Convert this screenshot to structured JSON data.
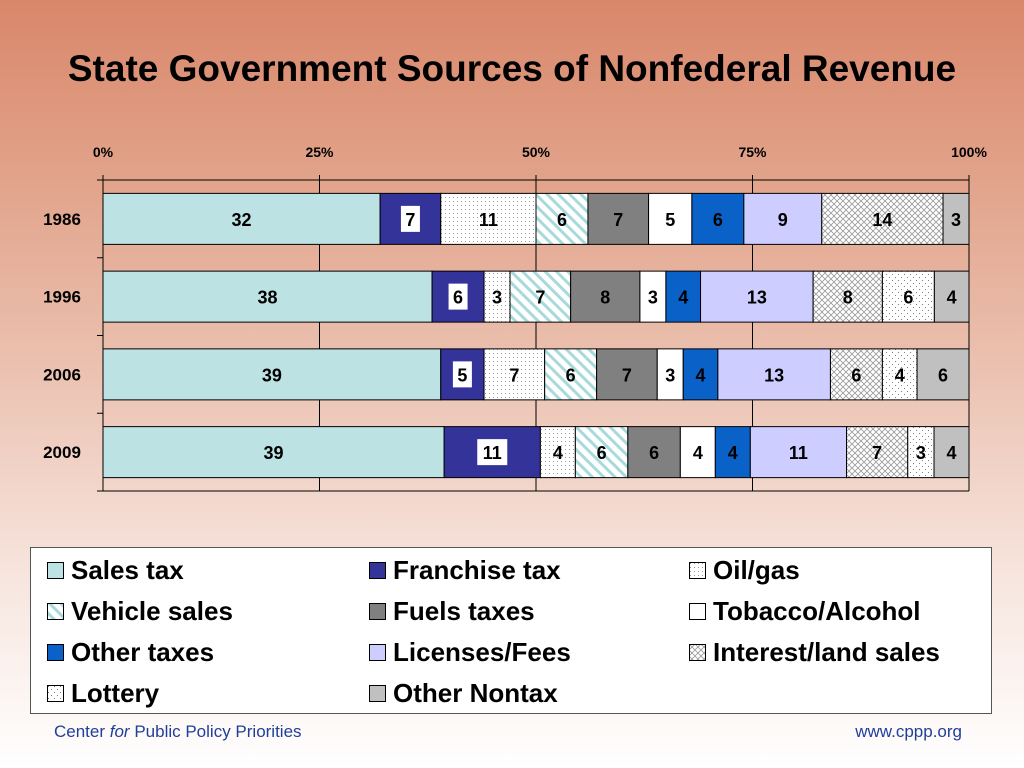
{
  "title": "State Government Sources of Nonfederal Revenue",
  "footer": {
    "left_pre": "Center ",
    "left_italic": "for",
    "left_post": " Public Policy Priorities",
    "right": "www.cppp.org"
  },
  "chart_data": {
    "type": "bar",
    "orientation": "horizontal",
    "stacked": true,
    "percent_scale": true,
    "xlim": [
      0,
      100
    ],
    "x_ticks": [
      "0%",
      "25%",
      "50%",
      "75%",
      "100%"
    ],
    "legend_position": "bottom",
    "categories": [
      "1986",
      "1996",
      "2006",
      "2009"
    ],
    "series": [
      {
        "name": "Sales tax",
        "fill": "#bde2e3",
        "pattern": "none",
        "values": [
          32,
          38,
          39,
          39
        ]
      },
      {
        "name": "Franchise tax",
        "fill": "#33339a",
        "pattern": "none",
        "values": [
          7,
          6,
          5,
          11
        ]
      },
      {
        "name": "Oil/gas",
        "fill": "#ffffff",
        "pattern": "dots",
        "values": [
          11,
          3,
          7,
          4
        ]
      },
      {
        "name": "Vehicle sales",
        "fill": "#ffffff",
        "pattern": "diagonal",
        "values": [
          6,
          7,
          6,
          6
        ]
      },
      {
        "name": "Fuels taxes",
        "fill": "#808080",
        "pattern": "none",
        "values": [
          7,
          8,
          7,
          6
        ]
      },
      {
        "name": "Tobacco/Alcohol",
        "fill": "#ffffff",
        "pattern": "none",
        "values": [
          5,
          3,
          3,
          4
        ]
      },
      {
        "name": "Other taxes",
        "fill": "#0a62c8",
        "pattern": "none",
        "values": [
          6,
          4,
          4,
          4
        ]
      },
      {
        "name": "Licenses/Fees",
        "fill": "#cdcdff",
        "pattern": "none",
        "values": [
          9,
          13,
          13,
          11
        ]
      },
      {
        "name": "Interest/land sales",
        "fill": "#ffffff",
        "pattern": "crosshatch",
        "values": [
          14,
          8,
          6,
          7
        ]
      },
      {
        "name": "Lottery",
        "fill": "#ffffff",
        "pattern": "sparse-dots",
        "values": [
          0,
          6,
          4,
          3
        ]
      },
      {
        "name": "Other Nontax",
        "fill": "#c0c0c0",
        "pattern": "none",
        "values": [
          3,
          4,
          6,
          4
        ]
      }
    ],
    "legend_order": [
      "Sales tax",
      "Franchise tax",
      "Oil/gas",
      "Vehicle sales",
      "Fuels taxes",
      "Tobacco/Alcohol",
      "Other taxes",
      "Licenses/Fees",
      "Interest/land sales",
      "Lottery",
      "Other Nontax"
    ]
  }
}
